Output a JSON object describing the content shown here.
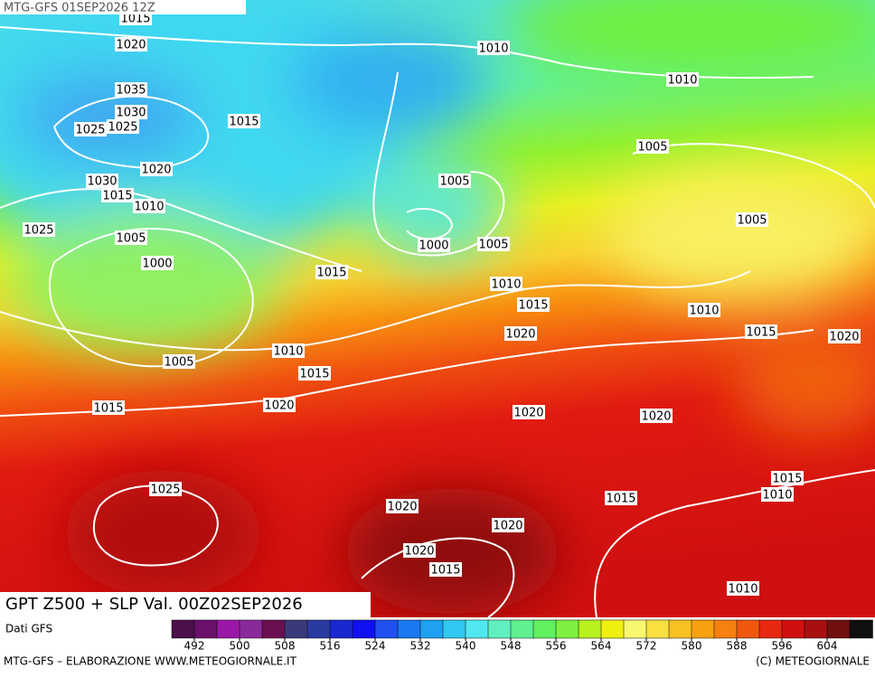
{
  "header": "MTG-GFS 01SEP2026 12Z",
  "title": "GPT Z500 + SLP Val. 00Z02SEP2026",
  "source": "Dati GFS",
  "footer_left": "MTG-GFS – ELABORAZIONE WWW.METEOGIORNALE.IT",
  "footer_right": "(C) METEOGIORNALE",
  "colorbar": {
    "lim": [
      488,
      612
    ],
    "ticks": [
      492,
      500,
      508,
      516,
      524,
      532,
      540,
      548,
      556,
      564,
      572,
      580,
      588,
      596,
      604
    ],
    "colors": [
      "#4b0f4b",
      "#6b106b",
      "#9a18a8",
      "#8a2a9a",
      "#6a1050",
      "#3a3a7a",
      "#2a3aa0",
      "#1a28d0",
      "#1010f0",
      "#2050f0",
      "#1a78f0",
      "#20a0f0",
      "#30c8f0",
      "#50e8f0",
      "#60f0c0",
      "#60f090",
      "#60f060",
      "#80f040",
      "#b8f020",
      "#f0f010",
      "#f8f870",
      "#f8e040",
      "#f8c020",
      "#f8a010",
      "#f88010",
      "#f05810",
      "#e82810",
      "#d01010",
      "#a81010",
      "#701010",
      "#101010"
    ]
  },
  "isobar_labels": [
    1015,
    1020,
    1010,
    1010,
    1035,
    1030,
    1025,
    1025,
    1015,
    1005,
    1020,
    1030,
    1015,
    1010,
    1005,
    1025,
    1005,
    1005,
    1000,
    1005,
    1000,
    1015,
    1010,
    1015,
    1010,
    1020,
    1015,
    1020,
    1010,
    1005,
    1015,
    1015,
    1020,
    1020,
    1020,
    1015,
    1010,
    1025,
    1015,
    1020,
    1020,
    1020,
    1015,
    1010
  ]
}
